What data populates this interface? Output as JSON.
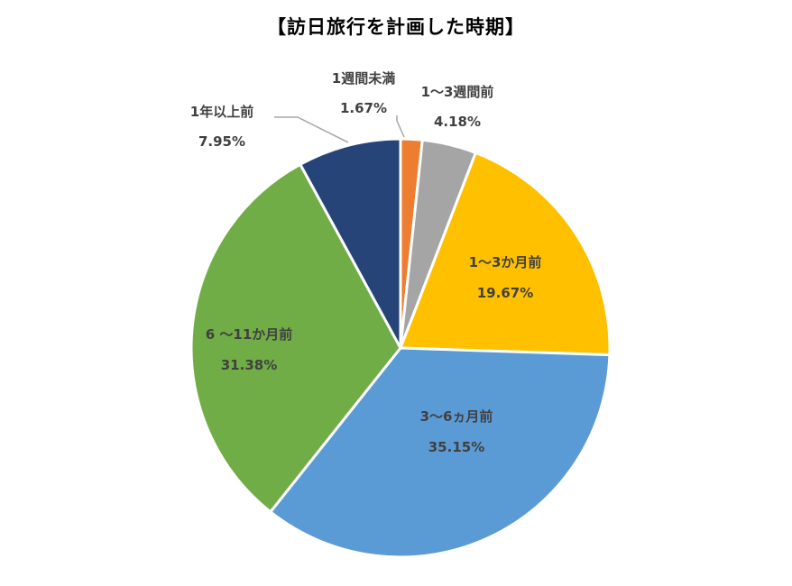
{
  "chart_data": {
    "type": "pie",
    "title": "【訪日旅行を計画した時期】",
    "slices": [
      {
        "label": "1週間未満",
        "value": 1.67,
        "display": "1.67%",
        "color": "#ED7D31"
      },
      {
        "label": "1～3週間前",
        "value": 4.18,
        "display": "4.18%",
        "color": "#A5A5A5"
      },
      {
        "label": "1～3か月前",
        "value": 19.67,
        "display": "19.67%",
        "color": "#FFC000"
      },
      {
        "label": "3～6ヵ月前",
        "value": 35.15,
        "display": "35.15%",
        "color": "#5B9BD5"
      },
      {
        "label": "6 ～11か月前",
        "value": 31.38,
        "display": "31.38%",
        "color": "#70AD47"
      },
      {
        "label": "1年以上前",
        "value": 7.95,
        "display": "7.95%",
        "color": "#264478"
      }
    ],
    "legend": "none"
  }
}
